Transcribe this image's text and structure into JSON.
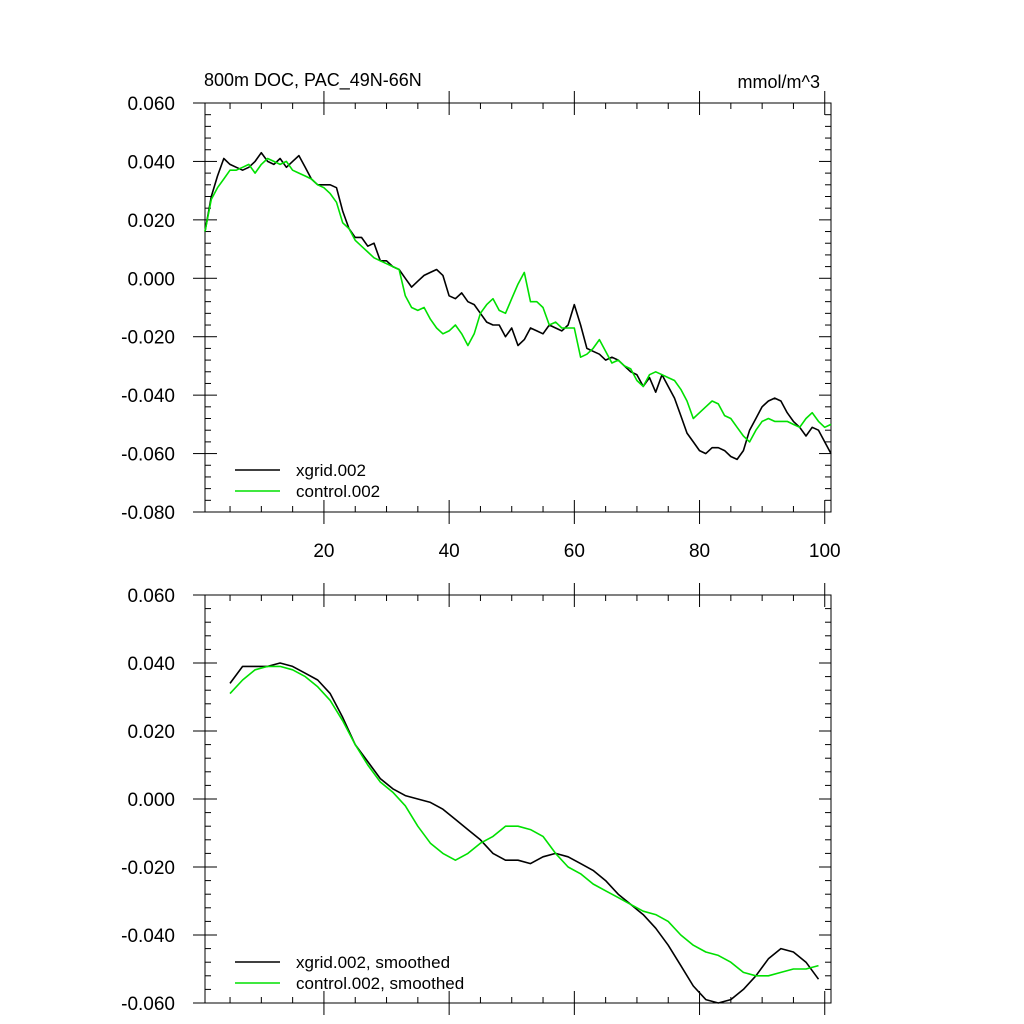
{
  "figure": {
    "title_left": "800m DOC, PAC_49N-66N",
    "title_right": "mmol/m^3"
  },
  "colors": {
    "xgrid": "#000000",
    "control": "#00e000",
    "axis": "#000000"
  },
  "chart_data": [
    {
      "type": "line",
      "title": "800m DOC, PAC_49N-66N",
      "units": "mmol/m^3",
      "xlim": [
        1,
        101
      ],
      "ylim": [
        -0.08,
        0.06
      ],
      "xticks": [
        20,
        40,
        60,
        80,
        100
      ],
      "xtick_labels": [
        "20",
        "40",
        "60",
        "80",
        "100"
      ],
      "yticks": [
        -0.08,
        -0.06,
        -0.04,
        -0.02,
        0.0,
        0.02,
        0.04,
        0.06
      ],
      "ytick_labels": [
        "-0.080",
        "-0.060",
        "-0.040",
        "-0.020",
        "0.000",
        "0.020",
        "0.040",
        "0.060"
      ],
      "legend_position": "bottom-left",
      "series": [
        {
          "name": "xgrid.002",
          "color": "#000000",
          "x": [
            1,
            2,
            3,
            4,
            5,
            6,
            7,
            8,
            9,
            10,
            11,
            12,
            13,
            14,
            15,
            16,
            17,
            18,
            19,
            20,
            21,
            22,
            23,
            24,
            25,
            26,
            27,
            28,
            29,
            30,
            31,
            32,
            33,
            34,
            35,
            36,
            37,
            38,
            39,
            40,
            41,
            42,
            43,
            44,
            45,
            46,
            47,
            48,
            49,
            50,
            51,
            52,
            53,
            54,
            55,
            56,
            57,
            58,
            59,
            60,
            61,
            62,
            63,
            64,
            65,
            66,
            67,
            68,
            69,
            70,
            71,
            72,
            73,
            74,
            75,
            76,
            77,
            78,
            79,
            80,
            81,
            82,
            83,
            84,
            85,
            86,
            87,
            88,
            89,
            90,
            91,
            92,
            93,
            94,
            95,
            96,
            97,
            98,
            99,
            100,
            101
          ],
          "y": [
            0.016,
            0.028,
            0.035,
            0.041,
            0.039,
            0.038,
            0.037,
            0.038,
            0.04,
            0.043,
            0.04,
            0.039,
            0.041,
            0.038,
            0.04,
            0.042,
            0.038,
            0.034,
            0.032,
            0.032,
            0.032,
            0.031,
            0.023,
            0.017,
            0.014,
            0.014,
            0.011,
            0.012,
            0.006,
            0.006,
            0.004,
            0.003,
            0.0,
            -0.003,
            -0.001,
            0.001,
            0.002,
            0.003,
            0.001,
            -0.006,
            -0.007,
            -0.005,
            -0.008,
            -0.009,
            -0.012,
            -0.015,
            -0.016,
            -0.016,
            -0.02,
            -0.017,
            -0.023,
            -0.021,
            -0.017,
            -0.018,
            -0.019,
            -0.016,
            -0.017,
            -0.018,
            -0.016,
            -0.009,
            -0.016,
            -0.024,
            -0.025,
            -0.026,
            -0.028,
            -0.027,
            -0.028,
            -0.03,
            -0.032,
            -0.033,
            -0.037,
            -0.034,
            -0.039,
            -0.033,
            -0.037,
            -0.041,
            -0.047,
            -0.053,
            -0.056,
            -0.059,
            -0.06,
            -0.058,
            -0.058,
            -0.059,
            -0.061,
            -0.062,
            -0.059,
            -0.052,
            -0.048,
            -0.044,
            -0.042,
            -0.041,
            -0.042,
            -0.046,
            -0.049,
            -0.051,
            -0.054,
            -0.051,
            -0.052,
            -0.056,
            -0.06
          ]
        },
        {
          "name": "control.002",
          "color": "#00e000",
          "x": [
            1,
            2,
            3,
            4,
            5,
            6,
            7,
            8,
            9,
            10,
            11,
            12,
            13,
            14,
            15,
            16,
            17,
            18,
            19,
            20,
            21,
            22,
            23,
            24,
            25,
            26,
            27,
            28,
            29,
            30,
            31,
            32,
            33,
            34,
            35,
            36,
            37,
            38,
            39,
            40,
            41,
            42,
            43,
            44,
            45,
            46,
            47,
            48,
            49,
            50,
            51,
            52,
            53,
            54,
            55,
            56,
            57,
            58,
            59,
            60,
            61,
            62,
            63,
            64,
            65,
            66,
            67,
            68,
            69,
            70,
            71,
            72,
            73,
            74,
            75,
            76,
            77,
            78,
            79,
            80,
            81,
            82,
            83,
            84,
            85,
            86,
            87,
            88,
            89,
            90,
            91,
            92,
            93,
            94,
            95,
            96,
            97,
            98,
            99,
            100,
            101
          ],
          "y": [
            0.016,
            0.027,
            0.031,
            0.034,
            0.037,
            0.037,
            0.038,
            0.039,
            0.036,
            0.039,
            0.041,
            0.04,
            0.039,
            0.04,
            0.037,
            0.036,
            0.035,
            0.034,
            0.032,
            0.031,
            0.029,
            0.026,
            0.019,
            0.017,
            0.013,
            0.011,
            0.009,
            0.007,
            0.006,
            0.005,
            0.004,
            0.003,
            -0.006,
            -0.01,
            -0.011,
            -0.01,
            -0.014,
            -0.017,
            -0.019,
            -0.018,
            -0.016,
            -0.019,
            -0.023,
            -0.019,
            -0.012,
            -0.009,
            -0.007,
            -0.011,
            -0.012,
            -0.007,
            -0.002,
            0.002,
            -0.008,
            -0.008,
            -0.01,
            -0.016,
            -0.015,
            -0.017,
            -0.017,
            -0.017,
            -0.027,
            -0.026,
            -0.024,
            -0.021,
            -0.025,
            -0.029,
            -0.028,
            -0.03,
            -0.031,
            -0.035,
            -0.037,
            -0.033,
            -0.032,
            -0.033,
            -0.034,
            -0.035,
            -0.038,
            -0.042,
            -0.048,
            -0.046,
            -0.044,
            -0.042,
            -0.043,
            -0.047,
            -0.048,
            -0.051,
            -0.054,
            -0.056,
            -0.052,
            -0.049,
            -0.048,
            -0.049,
            -0.049,
            -0.049,
            -0.05,
            -0.051,
            -0.048,
            -0.046,
            -0.049,
            -0.051,
            -0.05
          ]
        }
      ]
    },
    {
      "type": "line",
      "title": "",
      "xlim": [
        1,
        101
      ],
      "ylim": [
        -0.06,
        0.06
      ],
      "xticks": [
        20,
        40,
        60,
        80,
        100
      ],
      "yticks": [
        -0.06,
        -0.04,
        -0.02,
        0.0,
        0.02,
        0.04,
        0.06
      ],
      "ytick_labels": [
        "-0.060",
        "-0.040",
        "-0.020",
        "0.000",
        "0.020",
        "0.040",
        "0.060"
      ],
      "legend_position": "bottom-left",
      "series": [
        {
          "name": "xgrid.002, smoothed",
          "color": "#000000",
          "x": [
            5,
            7,
            9,
            11,
            13,
            15,
            17,
            19,
            21,
            23,
            25,
            27,
            29,
            31,
            33,
            35,
            37,
            39,
            41,
            43,
            45,
            47,
            49,
            51,
            53,
            55,
            57,
            59,
            61,
            63,
            65,
            67,
            69,
            71,
            73,
            75,
            77,
            79,
            81,
            83,
            85,
            87,
            89,
            91,
            93,
            95,
            97,
            99
          ],
          "y": [
            0.034,
            0.039,
            0.039,
            0.039,
            0.04,
            0.039,
            0.037,
            0.035,
            0.031,
            0.024,
            0.016,
            0.011,
            0.006,
            0.003,
            0.001,
            0.0,
            -0.001,
            -0.003,
            -0.006,
            -0.009,
            -0.012,
            -0.016,
            -0.018,
            -0.018,
            -0.019,
            -0.017,
            -0.016,
            -0.017,
            -0.019,
            -0.021,
            -0.024,
            -0.028,
            -0.031,
            -0.034,
            -0.038,
            -0.043,
            -0.049,
            -0.055,
            -0.059,
            -0.06,
            -0.059,
            -0.056,
            -0.052,
            -0.047,
            -0.044,
            -0.045,
            -0.048,
            -0.053
          ]
        },
        {
          "name": "control.002, smoothed",
          "color": "#00e000",
          "x": [
            5,
            7,
            9,
            11,
            13,
            15,
            17,
            19,
            21,
            23,
            25,
            27,
            29,
            31,
            33,
            35,
            37,
            39,
            41,
            43,
            45,
            47,
            49,
            51,
            53,
            55,
            57,
            59,
            61,
            63,
            65,
            67,
            69,
            71,
            73,
            75,
            77,
            79,
            81,
            83,
            85,
            87,
            89,
            91,
            93,
            95,
            97,
            99
          ],
          "y": [
            0.031,
            0.035,
            0.038,
            0.039,
            0.039,
            0.038,
            0.036,
            0.033,
            0.029,
            0.023,
            0.016,
            0.01,
            0.005,
            0.002,
            -0.002,
            -0.008,
            -0.013,
            -0.016,
            -0.018,
            -0.016,
            -0.013,
            -0.011,
            -0.008,
            -0.008,
            -0.009,
            -0.011,
            -0.016,
            -0.02,
            -0.022,
            -0.025,
            -0.027,
            -0.029,
            -0.031,
            -0.033,
            -0.034,
            -0.036,
            -0.04,
            -0.043,
            -0.045,
            -0.046,
            -0.048,
            -0.051,
            -0.052,
            -0.052,
            -0.051,
            -0.05,
            -0.05,
            -0.049
          ]
        }
      ]
    }
  ]
}
